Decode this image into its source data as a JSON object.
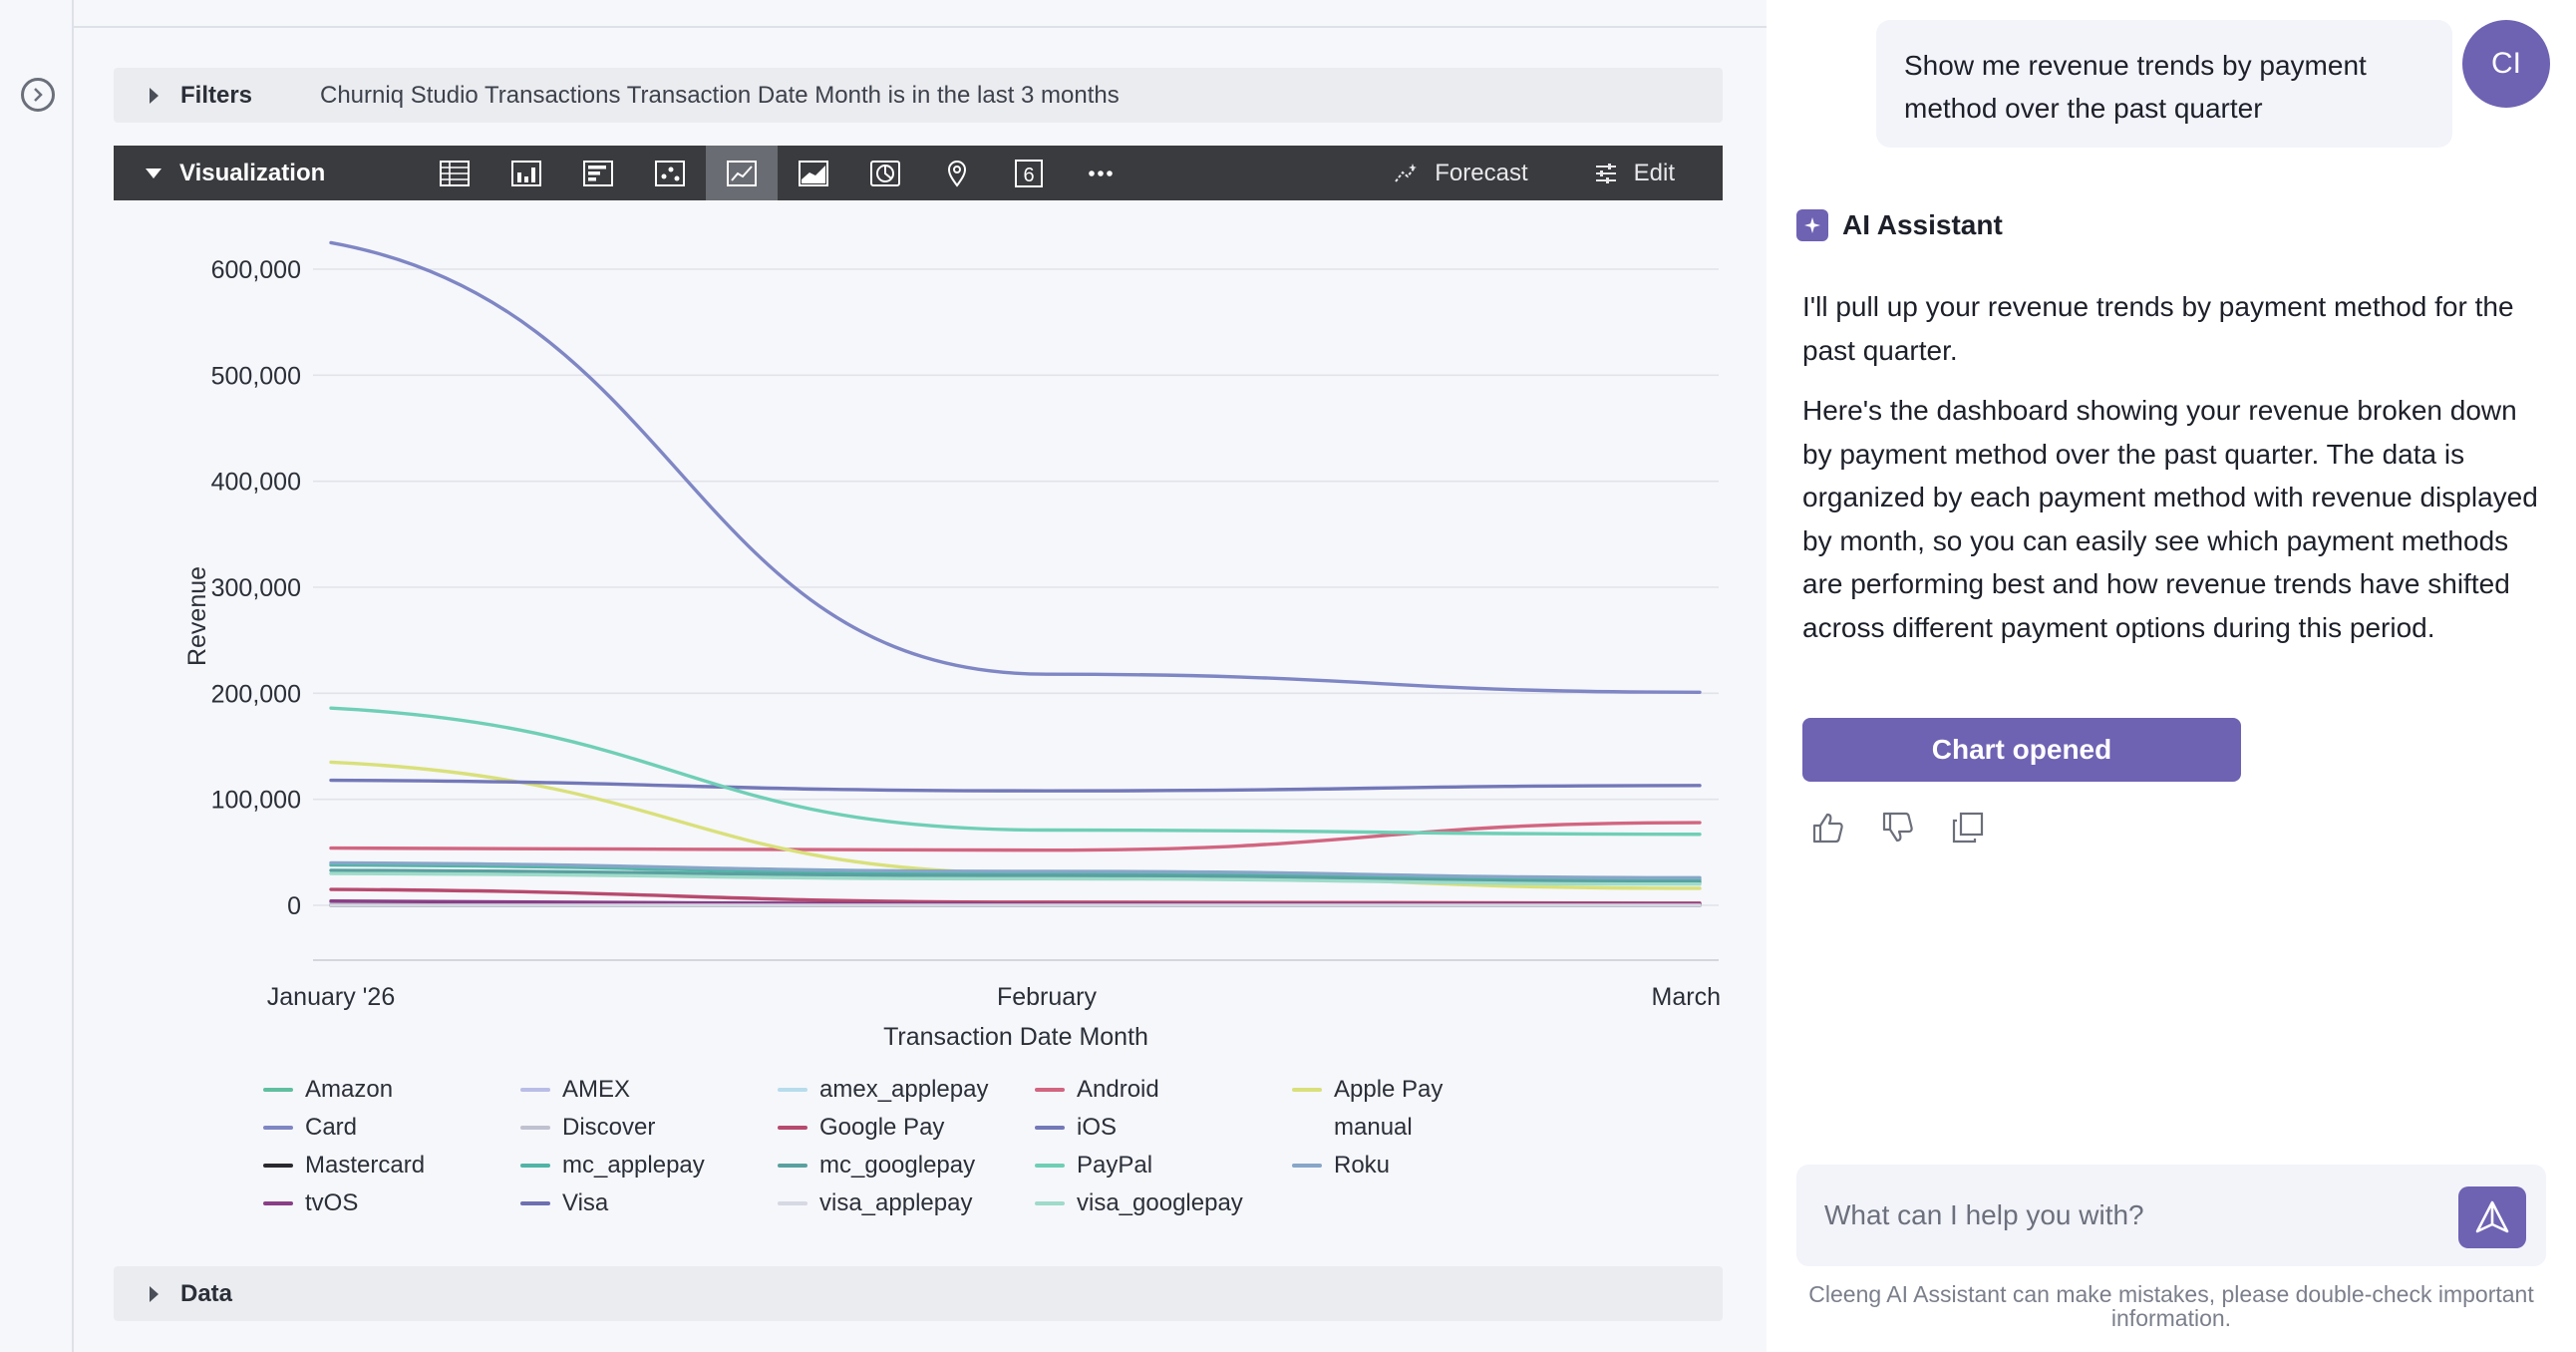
{
  "main": {
    "filters": {
      "label": "Filters",
      "description": "Churniq Studio Transactions Transaction Date Month is in the last 3 months"
    },
    "visualization": {
      "label": "Visualization",
      "tools": [
        {
          "name": "table-icon"
        },
        {
          "name": "column-chart-icon"
        },
        {
          "name": "bar-chart-icon"
        },
        {
          "name": "scatter-chart-icon"
        },
        {
          "name": "line-chart-icon",
          "active": true
        },
        {
          "name": "area-chart-icon"
        },
        {
          "name": "pie-chart-icon"
        },
        {
          "name": "map-pin-icon"
        },
        {
          "name": "single-value-icon",
          "text": "6"
        },
        {
          "name": "more-icon"
        }
      ],
      "forecast_label": "Forecast",
      "edit_label": "Edit"
    },
    "data_label": "Data"
  },
  "chart_data": {
    "type": "line",
    "xlabel": "Transaction Date Month",
    "ylabel": "Revenue",
    "x": [
      "January '26",
      "February",
      "March"
    ],
    "ylim": [
      0,
      600000
    ],
    "yticks": [
      "0",
      "100,000",
      "200,000",
      "300,000",
      "400,000",
      "500,000",
      "600,000"
    ],
    "grid": true,
    "legend_position": "bottom",
    "series": [
      {
        "name": "Amazon",
        "color": "#5fbf9f",
        "values": [
          0,
          0,
          0
        ]
      },
      {
        "name": "AMEX",
        "color": "#b9bde6",
        "values": [
          3000,
          2000,
          2000
        ]
      },
      {
        "name": "amex_applepay",
        "color": "#b7dceb",
        "values": [
          0,
          0,
          0
        ]
      },
      {
        "name": "Android",
        "color": "#d26580",
        "values": [
          54000,
          52000,
          78000
        ]
      },
      {
        "name": "Apple Pay",
        "color": "#d9e07a",
        "values": [
          135000,
          30000,
          16000
        ]
      },
      {
        "name": "Card",
        "color": "#7f86c4",
        "values": [
          625000,
          218000,
          201000
        ]
      },
      {
        "name": "Discover",
        "color": "#bfc1d0",
        "values": [
          1000,
          1000,
          1000
        ]
      },
      {
        "name": "Google Pay",
        "color": "#b84a6e",
        "values": [
          15000,
          3000,
          2000
        ]
      },
      {
        "name": "iOS",
        "color": "#7378b8",
        "values": [
          118000,
          108000,
          113000
        ]
      },
      {
        "name": "manual",
        "color": "#d9e07a",
        "values": [
          0,
          0,
          0
        ]
      },
      {
        "name": "Mastercard",
        "color": "#2a2a2e",
        "values": [
          0,
          0,
          0
        ]
      },
      {
        "name": "mc_applepay",
        "color": "#4fb5a6",
        "values": [
          38000,
          30000,
          24000
        ]
      },
      {
        "name": "mc_googlepay",
        "color": "#5aa0a0",
        "values": [
          33000,
          28000,
          22000
        ]
      },
      {
        "name": "PayPal",
        "color": "#6fcfb6",
        "values": [
          186000,
          71000,
          67000
        ]
      },
      {
        "name": "Roku",
        "color": "#87a6c8",
        "values": [
          40000,
          32000,
          26000
        ]
      },
      {
        "name": "tvOS",
        "color": "#8a3e86",
        "values": [
          4000,
          1000,
          1000
        ]
      },
      {
        "name": "Visa",
        "color": "#6f70b0",
        "values": [
          0,
          0,
          0
        ]
      },
      {
        "name": "visa_applepay",
        "color": "#d6d8e2",
        "values": [
          0,
          0,
          0
        ]
      },
      {
        "name": "visa_googlepay",
        "color": "#9edbc9",
        "values": [
          30000,
          25000,
          20000
        ]
      }
    ]
  },
  "legend": [
    {
      "label": "Amazon",
      "color": "#5fbf9f"
    },
    {
      "label": "AMEX",
      "color": "#b9bde6"
    },
    {
      "label": "amex_applepay",
      "color": "#b7dceb"
    },
    {
      "label": "Android",
      "color": "#d26580"
    },
    {
      "label": "Apple Pay",
      "color": "#d9e07a"
    },
    {
      "label": "Card",
      "color": "#7f86c4"
    },
    {
      "label": "Discover",
      "color": "#bfc1d0"
    },
    {
      "label": "Google Pay",
      "color": "#b84a6e"
    },
    {
      "label": "iOS",
      "color": "#7378b8"
    },
    {
      "label": "manual",
      "color": "",
      "continuation": true
    },
    {
      "label": "Mastercard",
      "color": "#2a2a2e"
    },
    {
      "label": "mc_applepay",
      "color": "#4fb5a6"
    },
    {
      "label": "mc_googlepay",
      "color": "#5aa0a0"
    },
    {
      "label": "PayPal",
      "color": "#6fcfb6"
    },
    {
      "label": "Roku",
      "color": "#87a6c8"
    },
    {
      "label": "tvOS",
      "color": "#8a3e86"
    },
    {
      "label": "Visa",
      "color": "#6f70b0"
    },
    {
      "label": "visa_applepay",
      "color": "#d6d8e2"
    },
    {
      "label": "visa_googlepay",
      "color": "#9edbc9"
    }
  ],
  "assistant": {
    "user_message": "Show me revenue trends by payment method over the past quarter",
    "user_initials": "CI",
    "title": "AI Assistant",
    "reply_1": "I'll pull up your revenue trends by payment method for the past quarter.",
    "reply_2": "Here's the dashboard showing your revenue broken down by payment method over the past quarter. The data is organized by each payment method with revenue displayed by month, so you can easily see which payment methods are performing best and how revenue trends have shifted across different payment options during this period.",
    "chart_button": "Chart opened",
    "input_placeholder": "What can I help you with?",
    "disclaimer": "Cleeng AI Assistant can make mistakes, please double-check important information."
  }
}
